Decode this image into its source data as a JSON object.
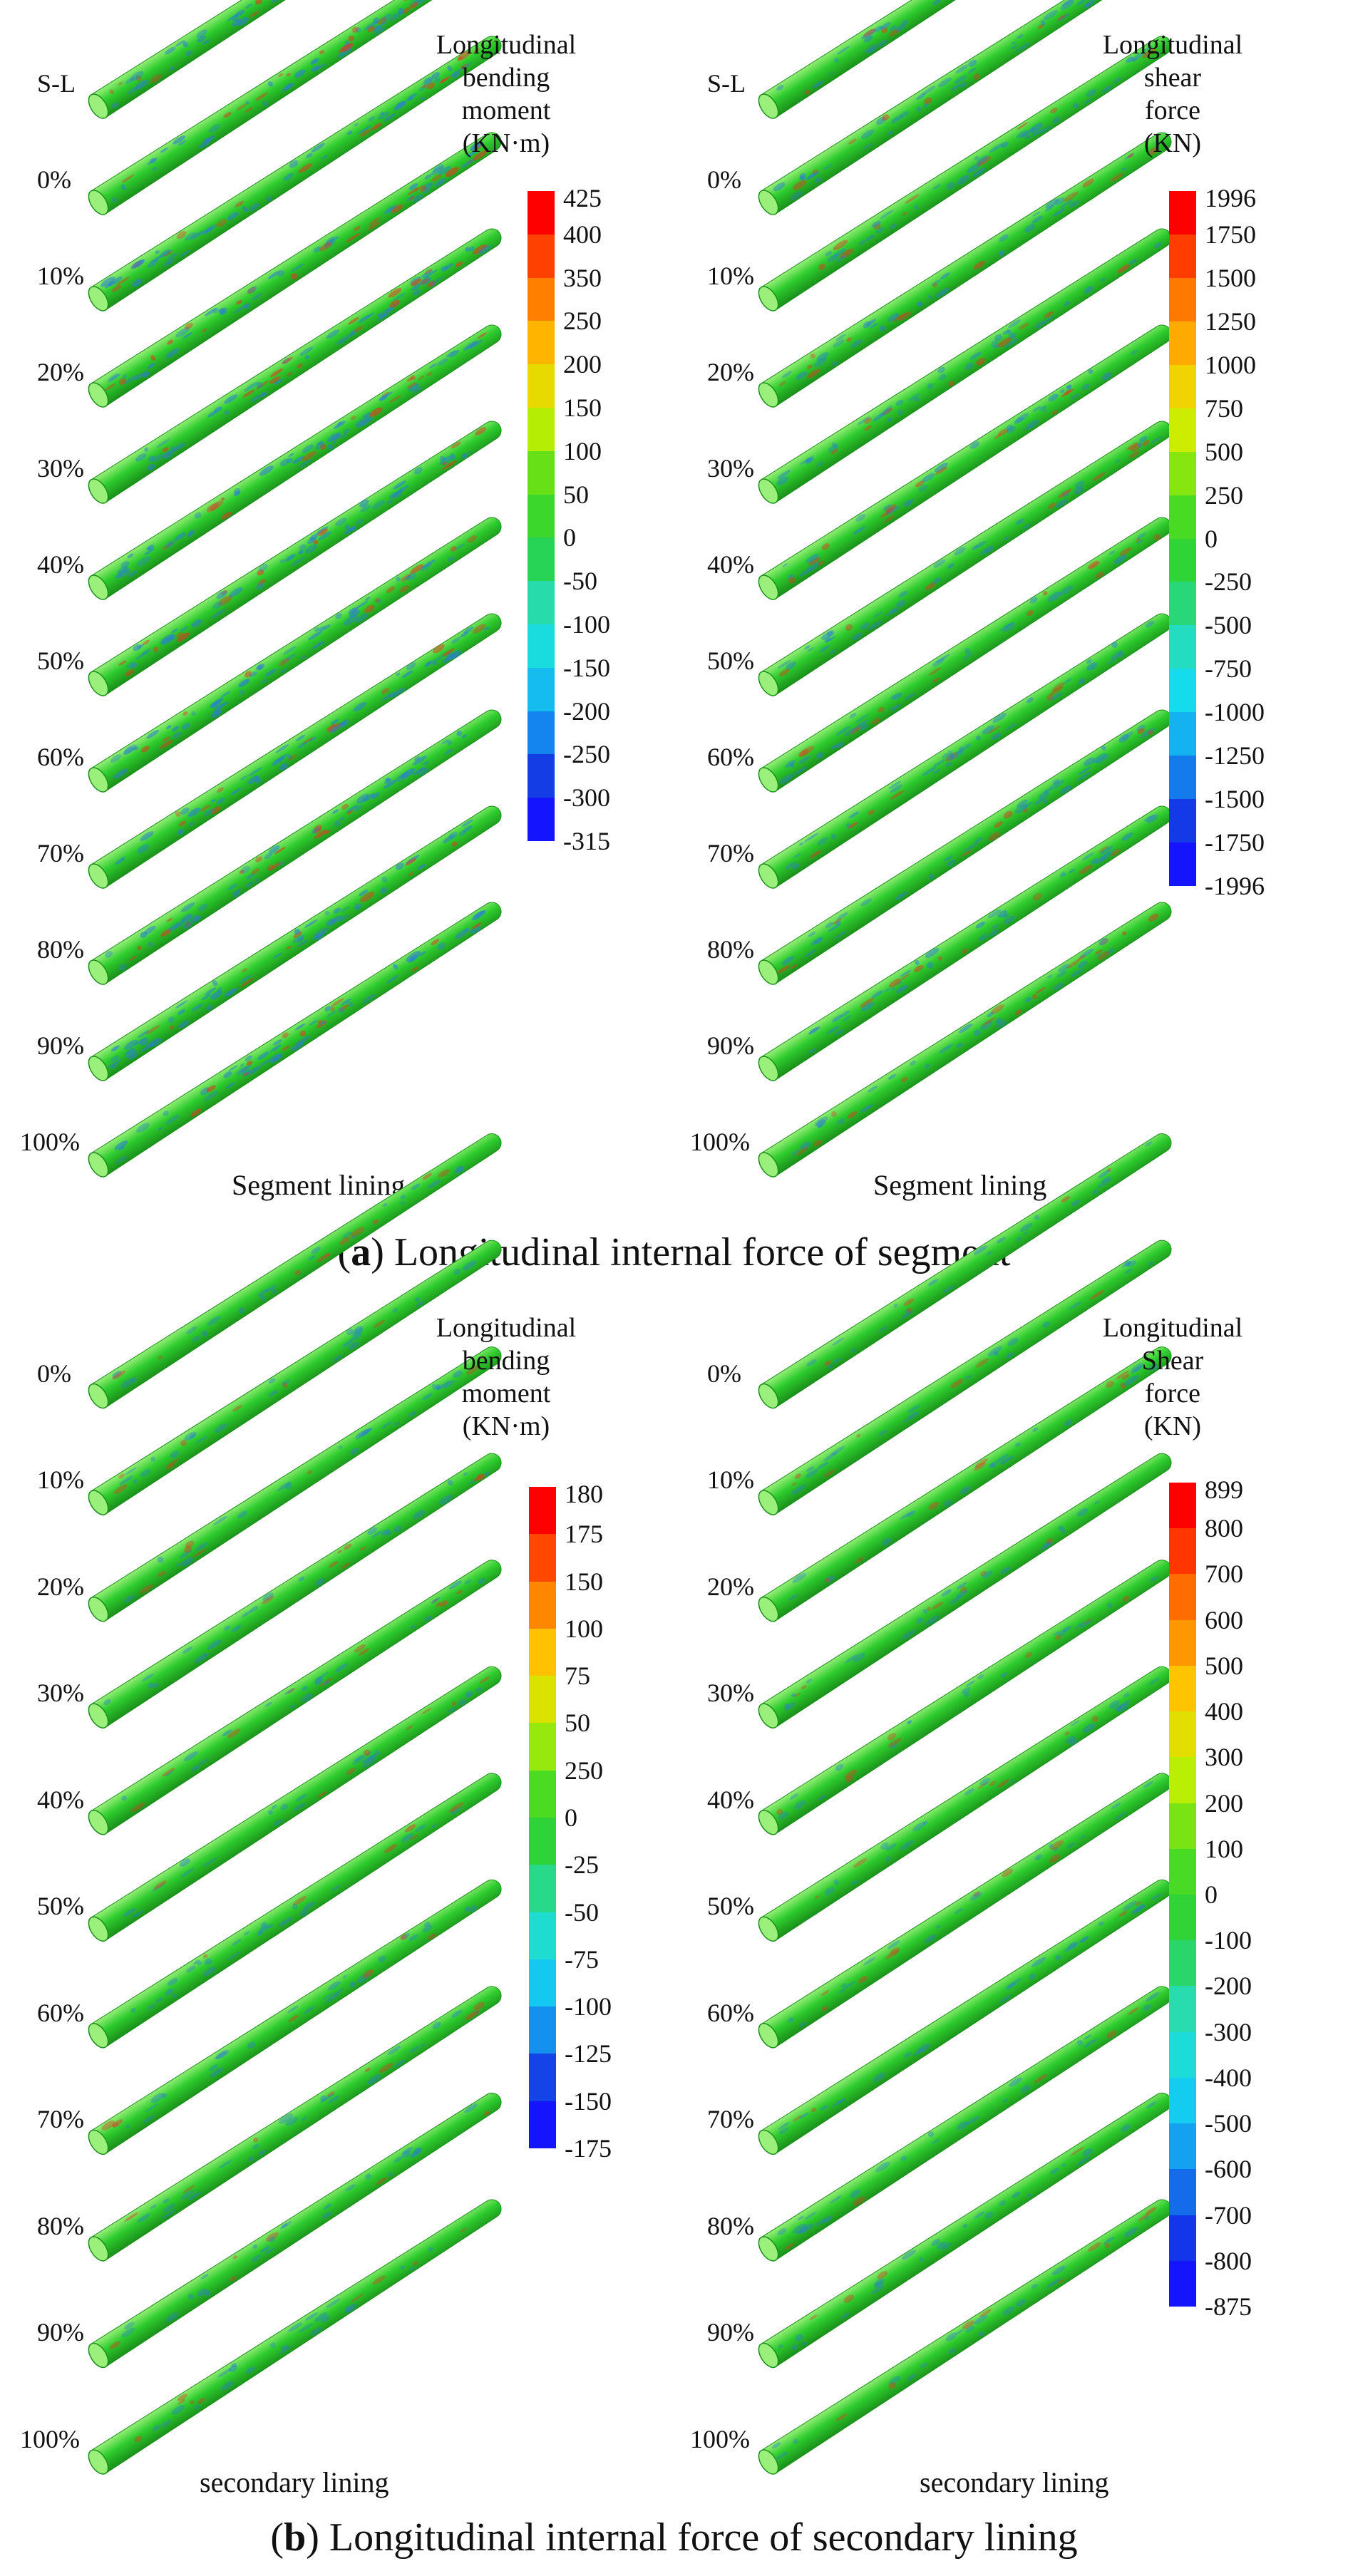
{
  "colors": {
    "tube_green": "#2ecc2e",
    "tube_dark": "#1a8f1a",
    "tube_light": "#9af07a",
    "blue_stain": "#2a7fd4",
    "red_stain": "#e03a20",
    "colorbar_top": "#ff0000",
    "colorbar_bottom": "#1010ff"
  },
  "panel_a": {
    "caption_letter": "a",
    "caption_text": "Longitudinal internal force of segment",
    "left": {
      "title_lines": [
        "Longitudinal",
        "bending",
        "moment",
        "(KN·m)"
      ],
      "scale": [
        "425",
        "400",
        "350",
        "250",
        "200",
        "150",
        "100",
        "50",
        "0",
        "-50",
        "-100",
        "-150",
        "-200",
        "-250",
        "-300",
        "-315"
      ],
      "row_labels": [
        "S-L",
        "0%",
        "10%",
        "20%",
        "30%",
        "40%",
        "50%",
        "60%",
        "70%",
        "80%",
        "90%",
        "100%"
      ],
      "footer": "Segment lining",
      "stain": 0.55
    },
    "right": {
      "title_lines": [
        "Longitudinal",
        "shear",
        "force",
        "(KN)"
      ],
      "scale": [
        "1996",
        "1750",
        "1500",
        "1250",
        "1000",
        "750",
        "500",
        "250",
        "0",
        "-250",
        "-500",
        "-750",
        "-1000",
        "-1250",
        "-1500",
        "-1750",
        "-1996"
      ],
      "row_labels": [
        "S-L",
        "0%",
        "10%",
        "20%",
        "30%",
        "40%",
        "50%",
        "60%",
        "70%",
        "80%",
        "90%",
        "100%"
      ],
      "footer": "Segment lining",
      "stain": 0.35
    }
  },
  "panel_b": {
    "caption_letter": "b",
    "caption_text": "Longitudinal internal force of secondary lining",
    "left": {
      "title_lines": [
        "Longitudinal",
        "bending",
        "moment",
        "(KN·m)"
      ],
      "scale": [
        "180",
        "175",
        "150",
        "100",
        "75",
        "50",
        "250",
        "0",
        "-25",
        "-50",
        "-75",
        "-100",
        "-125",
        "-150",
        "-175"
      ],
      "row_labels": [
        "0%",
        "10%",
        "20%",
        "30%",
        "40%",
        "50%",
        "60%",
        "70%",
        "80%",
        "90%",
        "100%"
      ],
      "footer": "secondary lining",
      "stain": 0.2
    },
    "right": {
      "title_lines": [
        "Longitudinal",
        "Shear",
        "force",
        "(KN)"
      ],
      "scale": [
        "899",
        "800",
        "700",
        "600",
        "500",
        "400",
        "300",
        "200",
        "100",
        "0",
        "-100",
        "-200",
        "-300",
        "-400",
        "-500",
        "-600",
        "-700",
        "-800",
        "-875"
      ],
      "row_labels": [
        "0%",
        "10%",
        "20%",
        "30%",
        "40%",
        "50%",
        "60%",
        "70%",
        "80%",
        "90%",
        "100%"
      ],
      "footer": "secondary lining",
      "stain": 0.15
    }
  }
}
